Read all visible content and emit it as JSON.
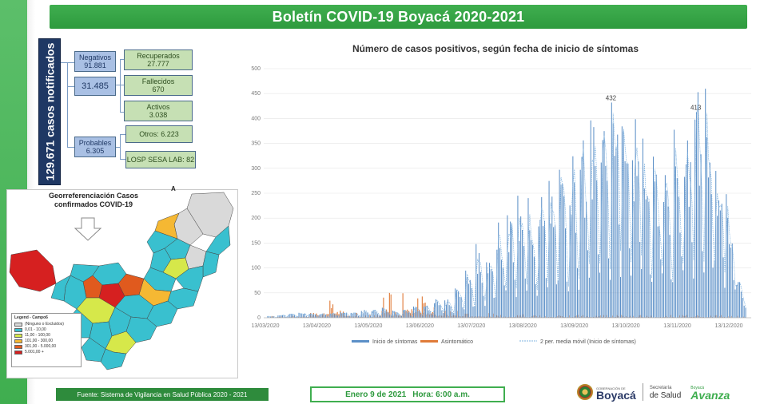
{
  "header": {
    "title": "Boletín COVID-19 Boyacá 2020-2021"
  },
  "summary": {
    "total": "129.671  casos notificados",
    "negativos_label": "Negativos",
    "negativos_value": "91.881",
    "confirmados_value": "31.485",
    "recuperados_label": "Recuperados",
    "recuperados_value": "27.777",
    "fallecidos_label": "Fallecidos",
    "fallecidos_value": "670",
    "activos_label": "Activos",
    "activos_value": "3.038",
    "probables_label": "Probables",
    "probables_value": "6.305",
    "otros": "Otros: 6.223",
    "losp": "LOSP SESA LAB: 82"
  },
  "map": {
    "title": "Georreferenciación Casos confirmados COVID-19",
    "north": "A",
    "legend_title": "Legend - Campo6",
    "legend_items": [
      {
        "label": "(Ninguno o Excluidos)",
        "color": "#d9d9d9"
      },
      {
        "label": "0,01 - 10,00",
        "color": "#39c0cf"
      },
      {
        "label": "11,00 - 100,00",
        "color": "#d6e84a"
      },
      {
        "label": "101,00 - 300,00",
        "color": "#f5b833"
      },
      {
        "label": "301,00 - 5.000,00",
        "color": "#e05a1e"
      },
      {
        "label": "5.001,00 +",
        "color": "#d62020"
      }
    ]
  },
  "chart": {
    "title": "Número de casos positivos, según fecha de inicio de síntomas",
    "peak1_label": "432",
    "peak2_label": "413",
    "legend": {
      "s1": "Inicio de síntomas",
      "s2": "Asintomático",
      "s3": "2 per. media móvil (Inicio de síntomas)"
    }
  },
  "chart_data": {
    "type": "bar",
    "title": "Número de casos positivos, según fecha de inicio de síntomas",
    "xlabel": "",
    "ylabel": "",
    "ylim": [
      0,
      500
    ],
    "y_ticks": [
      0,
      50,
      100,
      150,
      200,
      250,
      300,
      350,
      400,
      450,
      500
    ],
    "x_ticks": [
      "13/03/2020",
      "13/04/2020",
      "13/05/2020",
      "13/06/2020",
      "13/07/2020",
      "13/08/2020",
      "13/09/2020",
      "13/10/2020",
      "13/11/2020",
      "13/12/2020"
    ],
    "x_start": "2020-03-13",
    "x_end": "2021-01-08",
    "grid": true,
    "legend_position": "bottom",
    "series": [
      {
        "name": "Inicio de síntomas",
        "type": "bar",
        "color": "#5b8fc7",
        "approx_weekly_values": [
          3,
          6,
          8,
          10,
          9,
          8,
          10,
          12,
          10,
          14,
          15,
          18,
          12,
          15,
          20,
          25,
          35,
          40,
          60,
          85,
          120,
          140,
          180,
          190,
          200,
          210,
          230,
          240,
          260,
          300,
          320,
          350,
          380,
          432,
          390,
          360,
          330,
          300,
          290,
          310,
          360,
          413,
          380,
          300,
          200,
          70
        ],
        "annotations": [
          {
            "date": "2020-10-14",
            "value": 432
          },
          {
            "date": "2020-12-13",
            "value": 413
          }
        ]
      },
      {
        "name": "Asintomático",
        "type": "bar",
        "color": "#e07b39",
        "approx_weekly_values": [
          2,
          3,
          3,
          4,
          5,
          6,
          20,
          8,
          5,
          4,
          4,
          30,
          10,
          30,
          30,
          20,
          12,
          10,
          8,
          6,
          5,
          5,
          4,
          4,
          4,
          3,
          3,
          3,
          3,
          3,
          3,
          3,
          3,
          3,
          3,
          3,
          3,
          3,
          3,
          3,
          3,
          3,
          3,
          3,
          2,
          2
        ]
      },
      {
        "name": "2 per. media móvil (Inicio de síntomas)",
        "type": "line",
        "color": "#7fb3e0"
      }
    ]
  },
  "footer": {
    "source": "Fuente: Sistema de Vigilancia en Salud Pública 2020 - 2021",
    "date": "Enero 9 de 2021",
    "time": "Hora: 6:00 a.m.",
    "logo_small": "GOBERNACIÓN DE",
    "logo_boyaca": "Boyacá",
    "logo_secretaria": "Secretaría",
    "logo_salud": "de Salud",
    "logo_boyaca_small": "Boyacá",
    "logo_avanza": "Avanza"
  }
}
